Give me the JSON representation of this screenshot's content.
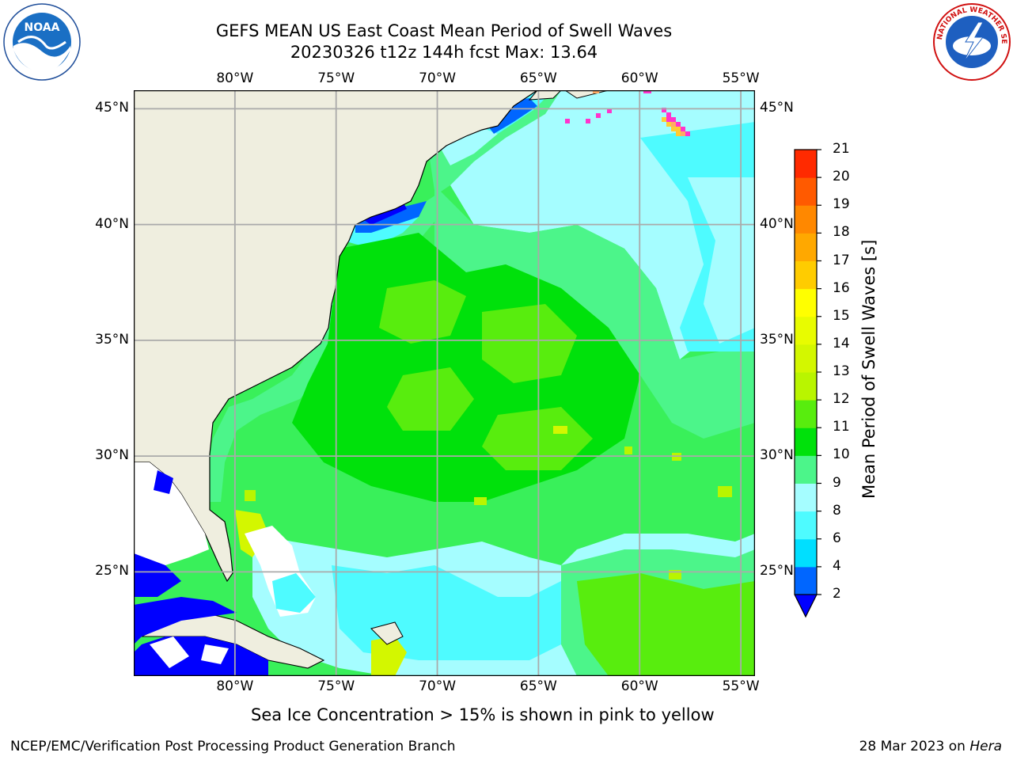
{
  "title_line1": "GEFS MEAN US East Coast Mean Period of Swell Waves",
  "title_line2": "20230326 t12z 144h fcst   Max: 13.64",
  "logos": {
    "left": "NOAA",
    "right_text": "NATIONAL WEATHER SERVICE"
  },
  "map": {
    "lon_labels": [
      "80°W",
      "75°W",
      "70°W",
      "65°W",
      "60°W",
      "55°W"
    ],
    "lat_labels": [
      "45°N",
      "40°N",
      "35°N",
      "30°N",
      "25°N"
    ],
    "lon_values": [
      -80,
      -75,
      -70,
      -65,
      -60,
      -55
    ],
    "lat_values": [
      45,
      40,
      35,
      30,
      25
    ],
    "lon_range": [
      -85,
      -54.3
    ],
    "lat_range": [
      20.5,
      45.8
    ],
    "colors": {
      "land": "#efeedf",
      "ocean_default": "#39f05a",
      "grid": "#aaaaaa",
      "white_mask": "#ffffff"
    }
  },
  "colorbar": {
    "label": "Mean Period of Swell Waves [s]",
    "ticks": [
      "2",
      "4",
      "6",
      "8",
      "9",
      "10",
      "11",
      "12",
      "13",
      "14",
      "15",
      "16",
      "17",
      "18",
      "19",
      "20",
      "21"
    ],
    "colors": [
      "#0066ff",
      "#00dfff",
      "#4efbff",
      "#a5fdff",
      "#4cf58a",
      "#00e10b",
      "#58ed0e",
      "#b9f500",
      "#d3f700",
      "#e8fc00",
      "#ffff00",
      "#ffcc00",
      "#ffa800",
      "#ff8800",
      "#ff5a00",
      "#ff2a00"
    ],
    "under_color": "#0000ff"
  },
  "ice_note": "Sea Ice Concentration > 15% is shown in pink to yellow",
  "footer": {
    "left": "NCEP/EMC/Verification Post Processing Product Generation Branch",
    "right_date": "28 Mar 2023 on ",
    "right_machine": "Hera"
  }
}
